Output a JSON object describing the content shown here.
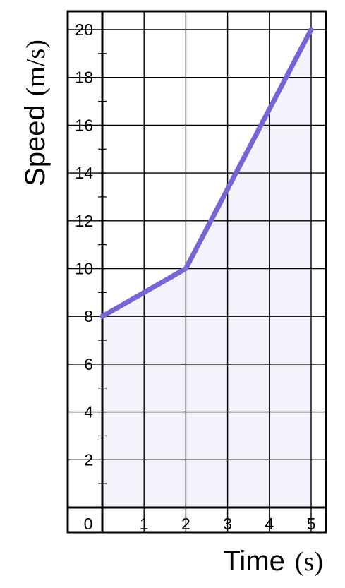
{
  "chart_data": {
    "type": "line",
    "xlabel_word": "Time",
    "xlabel_unit": "(s)",
    "ylabel_word": "Speed",
    "ylabel_unit": "(m/s)",
    "x": [
      0,
      2,
      5
    ],
    "y": [
      8,
      10,
      20
    ],
    "xlim": [
      0,
      5
    ],
    "ylim": [
      0,
      20
    ],
    "origin_label": "0",
    "x_ticks": [
      {
        "value": 1,
        "label": "1"
      },
      {
        "value": 2,
        "label": "2"
      },
      {
        "value": 3,
        "label": "3"
      },
      {
        "value": 4,
        "label": "4"
      },
      {
        "value": 5,
        "label": "5"
      }
    ],
    "y_ticks": [
      {
        "value": 2,
        "label": "2"
      },
      {
        "value": 4,
        "label": "4"
      },
      {
        "value": 6,
        "label": "6"
      },
      {
        "value": 8,
        "label": "8"
      },
      {
        "value": 10,
        "label": "10"
      },
      {
        "value": 12,
        "label": "12"
      },
      {
        "value": 14,
        "label": "14"
      },
      {
        "value": 16,
        "label": "16"
      },
      {
        "value": 18,
        "label": "18"
      },
      {
        "value": 20,
        "label": "20"
      }
    ],
    "grid": true,
    "shaded_area_under_line": true,
    "line_color": "#7566d6",
    "fill_color": "#f4f3fb",
    "grid_color": "#000000"
  }
}
